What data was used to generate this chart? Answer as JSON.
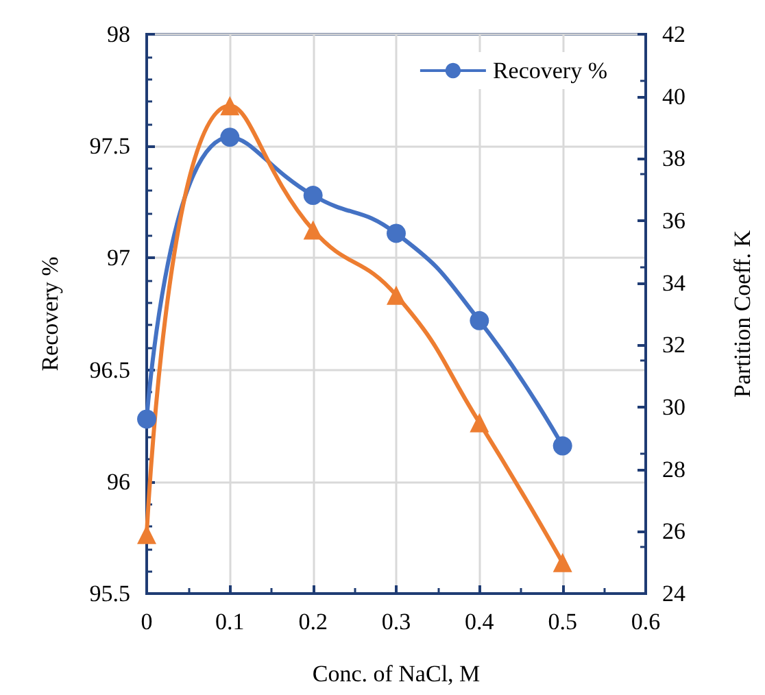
{
  "chart_data": {
    "type": "line",
    "xlabel": "Conc. of NaCl, M",
    "ylabel": "Recovery %",
    "y2label": "Partition Coeff. K",
    "x": [
      0,
      0.1,
      0.2,
      0.3,
      0.4,
      0.5
    ],
    "xlim": [
      0,
      0.6
    ],
    "xticks": [
      0,
      0.1,
      0.2,
      0.3,
      0.4,
      0.5,
      0.6
    ],
    "ylim": [
      95.5,
      98
    ],
    "yticks": [
      95.5,
      96,
      96.5,
      97,
      97.5,
      98
    ],
    "y2lim": [
      24,
      42
    ],
    "y2ticks": [
      24,
      26,
      28,
      30,
      32,
      34,
      36,
      38,
      40,
      42
    ],
    "series": [
      {
        "name": "Recovery %",
        "color": "#4472c4",
        "marker": "circle",
        "values": [
          96.28,
          97.54,
          97.28,
          97.11,
          96.72,
          96.16
        ]
      },
      {
        "color": "#ed7d31",
        "marker": "triangle",
        "axis": "y2",
        "values": [
          25.9,
          39.7,
          35.7,
          33.6,
          29.5,
          25.0
        ]
      }
    ],
    "grid": true,
    "legend": "top right"
  }
}
